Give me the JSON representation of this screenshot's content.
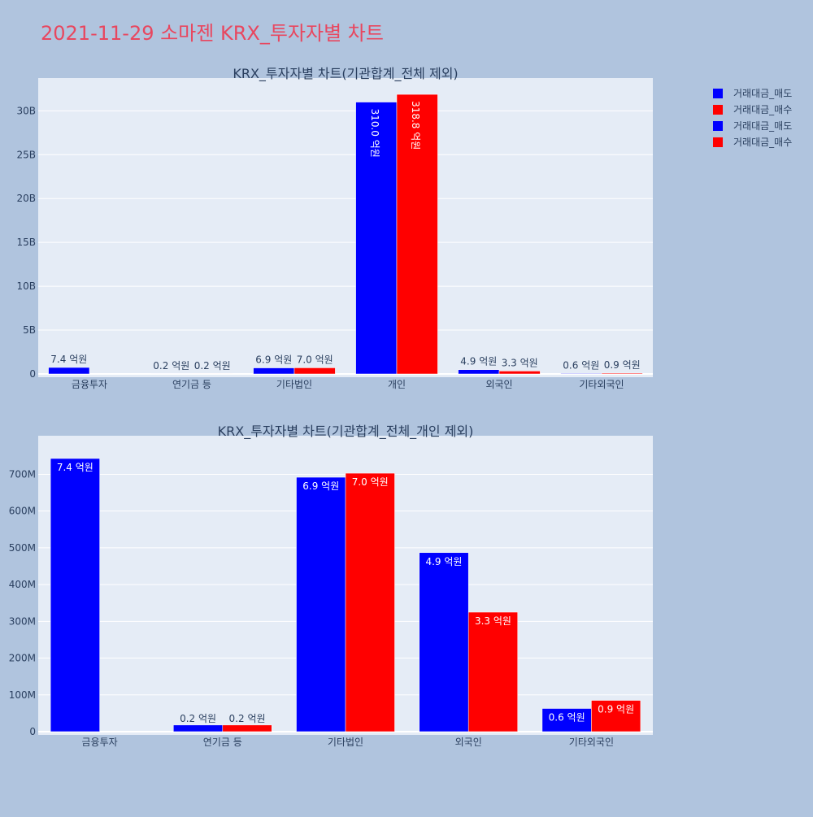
{
  "page": {
    "title": "2021-11-29 소마젠 KRX_투자자별 차트",
    "title_color": "#e8475f",
    "background": "#b0c4de",
    "plot_background": "#e5ecf6"
  },
  "legend": {
    "placement": "top-right",
    "items": [
      {
        "label": "거래대금_매도",
        "color": "#0000ff"
      },
      {
        "label": "거래대금_매수",
        "color": "#ff0000"
      },
      {
        "label": "거래대금_매도",
        "color": "#0000ff"
      },
      {
        "label": "거래대금_매수",
        "color": "#ff0000"
      }
    ]
  },
  "chart_data": [
    {
      "type": "bar",
      "title": "KRX_투자자별 차트(기관합계_전체 제외)",
      "categories": [
        "금융투자",
        "연기금 등",
        "기타법인",
        "개인",
        "외국인",
        "기타외국인"
      ],
      "yticks": [
        {
          "value": 0,
          "label": "0"
        },
        {
          "value": 5000000000,
          "label": "5B"
        },
        {
          "value": 10000000000,
          "label": "10B"
        },
        {
          "value": 15000000000,
          "label": "15B"
        },
        {
          "value": 20000000000,
          "label": "20B"
        },
        {
          "value": 25000000000,
          "label": "25B"
        },
        {
          "value": 30000000000,
          "label": "30B"
        }
      ],
      "ylim": [
        0,
        33000000000
      ],
      "grid": true,
      "series": [
        {
          "name": "거래대금_매도",
          "color": "#0000ff",
          "values": [
            740000000,
            20000000,
            690000000,
            31000000000,
            490000000,
            60000000
          ],
          "labels": [
            "7.4 억원",
            "0.2 억원",
            "6.9 억원",
            "310.0 억원",
            "4.9 억원",
            "0.6 억원"
          ]
        },
        {
          "name": "거래대금_매수",
          "color": "#ff0000",
          "values": [
            0,
            20000000,
            700000000,
            31880000000,
            330000000,
            90000000
          ],
          "labels": [
            "",
            "0.2 억원",
            "7.0 억원",
            "318.8 억원",
            "3.3 억원",
            "0.9 억원"
          ]
        }
      ]
    },
    {
      "type": "bar",
      "title": "KRX_투자자별 차트(기관합계_전체_개인 제외)",
      "categories": [
        "금융투자",
        "연기금 등",
        "기타법인",
        "외국인",
        "기타외국인"
      ],
      "yticks": [
        {
          "value": 0,
          "label": "0"
        },
        {
          "value": 100000000,
          "label": "100M"
        },
        {
          "value": 200000000,
          "label": "200M"
        },
        {
          "value": 300000000,
          "label": "300M"
        },
        {
          "value": 400000000,
          "label": "400M"
        },
        {
          "value": 500000000,
          "label": "500M"
        },
        {
          "value": 600000000,
          "label": "600M"
        },
        {
          "value": 700000000,
          "label": "700M"
        }
      ],
      "ylim": [
        0,
        785000000
      ],
      "grid": true,
      "series": [
        {
          "name": "거래대금_매도",
          "color": "#0000ff",
          "values": [
            743000000,
            18000000,
            692000000,
            487000000,
            63000000
          ],
          "labels": [
            "7.4 억원",
            "0.2 억원",
            "6.9 억원",
            "4.9 억원",
            "0.6 억원"
          ]
        },
        {
          "name": "거래대금_매수",
          "color": "#ff0000",
          "values": [
            0,
            18000000,
            703000000,
            325000000,
            85000000
          ],
          "labels": [
            "",
            "0.2 억원",
            "7.0 억원",
            "3.3 억원",
            "0.9 억원"
          ]
        }
      ]
    }
  ]
}
